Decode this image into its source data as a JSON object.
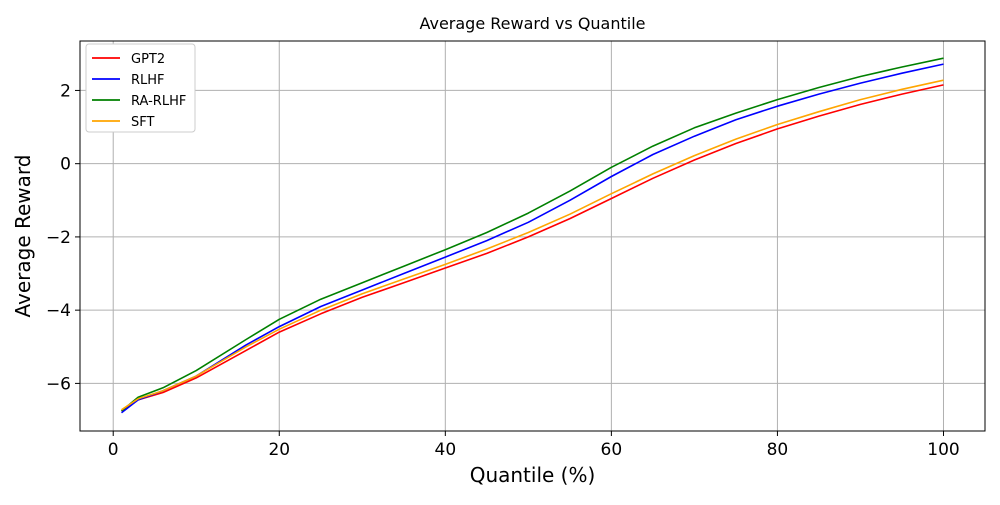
{
  "chart_data": {
    "type": "line",
    "title": "Average Reward vs Quantile",
    "xlabel": "Quantile (%)",
    "ylabel": "Average Reward",
    "xlim": [
      -4,
      105
    ],
    "ylim": [
      -7.3,
      3.35
    ],
    "xticks": [
      0,
      20,
      40,
      60,
      80,
      100
    ],
    "xtick_labels": [
      "0",
      "20",
      "40",
      "60",
      "80",
      "100"
    ],
    "yticks": [
      -6,
      -4,
      -2,
      0,
      2
    ],
    "ytick_labels": [
      "−6",
      "−4",
      "−2",
      "0",
      "2"
    ],
    "grid": true,
    "legend_position": "top-left",
    "series": [
      {
        "name": "GPT2",
        "color": "#ff0000",
        "x": [
          1,
          3,
          6,
          10,
          16,
          20,
          25,
          30,
          35,
          40,
          45,
          50,
          55,
          60,
          65,
          70,
          75,
          80,
          85,
          90,
          95,
          100
        ],
        "values": [
          -6.75,
          -6.45,
          -6.25,
          -5.85,
          -5.1,
          -4.6,
          -4.1,
          -3.65,
          -3.25,
          -2.85,
          -2.45,
          -2.0,
          -1.5,
          -0.95,
          -0.4,
          0.1,
          0.55,
          0.95,
          1.3,
          1.62,
          1.9,
          2.15
        ]
      },
      {
        "name": "RLHF",
        "color": "#0000ff",
        "x": [
          1,
          3,
          6,
          10,
          16,
          20,
          25,
          30,
          35,
          40,
          45,
          50,
          55,
          60,
          65,
          70,
          75,
          80,
          85,
          90,
          95,
          100
        ],
        "values": [
          -6.8,
          -6.45,
          -6.2,
          -5.8,
          -4.95,
          -4.45,
          -3.9,
          -3.45,
          -3.0,
          -2.55,
          -2.1,
          -1.6,
          -1.0,
          -0.35,
          0.25,
          0.75,
          1.2,
          1.57,
          1.9,
          2.2,
          2.47,
          2.72
        ]
      },
      {
        "name": "RA-RLHF",
        "color": "#008000",
        "x": [
          1,
          3,
          6,
          10,
          16,
          20,
          25,
          30,
          35,
          40,
          45,
          50,
          55,
          60,
          65,
          70,
          75,
          80,
          85,
          90,
          95,
          100
        ],
        "values": [
          -6.75,
          -6.38,
          -6.12,
          -5.65,
          -4.8,
          -4.25,
          -3.7,
          -3.25,
          -2.8,
          -2.35,
          -1.88,
          -1.35,
          -0.75,
          -0.1,
          0.48,
          0.98,
          1.38,
          1.75,
          2.08,
          2.38,
          2.64,
          2.88
        ]
      },
      {
        "name": "SFT",
        "color": "#ffa500",
        "x": [
          1,
          3,
          6,
          10,
          16,
          20,
          25,
          30,
          35,
          40,
          45,
          50,
          55,
          60,
          65,
          70,
          75,
          80,
          85,
          90,
          95,
          100
        ],
        "values": [
          -6.72,
          -6.42,
          -6.2,
          -5.8,
          -5.0,
          -4.52,
          -4.0,
          -3.55,
          -3.15,
          -2.75,
          -2.33,
          -1.88,
          -1.38,
          -0.82,
          -0.28,
          0.22,
          0.67,
          1.07,
          1.42,
          1.75,
          2.03,
          2.28
        ]
      }
    ]
  }
}
